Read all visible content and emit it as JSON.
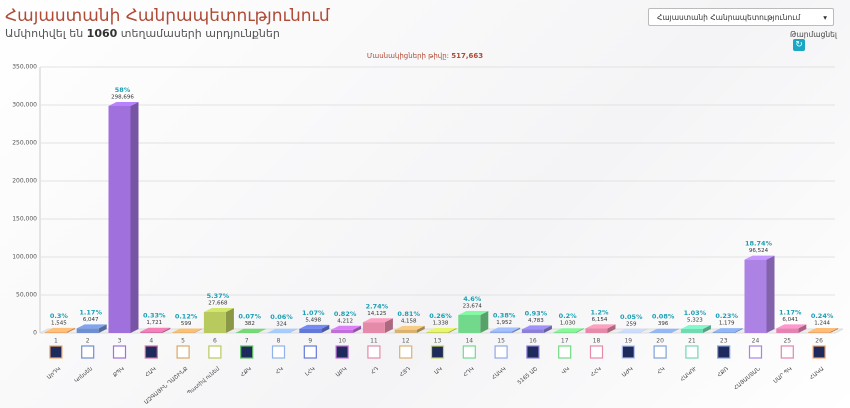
{
  "header": {
    "title": "Հայաստանի Հանրապետությունում",
    "subtitle_pre": "Ամփոփվել են",
    "subtitle_count": "1060",
    "subtitle_post": "տեղամասերի արդյունքներ",
    "dropdown": "Հայաստանի Հանրապետությունում",
    "refresh": "Թարմացնել"
  },
  "chart_data": {
    "type": "bar3d",
    "participants_label": "Մասնակիցների թիվը:",
    "participants": "517,663",
    "numbers": [
      "1",
      "2",
      "3",
      "4",
      "5",
      "6",
      "7",
      "8",
      "9",
      "10",
      "11",
      "12",
      "13",
      "14",
      "15",
      "16",
      "17",
      "18",
      "19",
      "20",
      "21",
      "23",
      "24",
      "25",
      "26"
    ],
    "categories": [
      "ԱրԴԿ",
      "Կոնսեն",
      "ՔՊԿ",
      "ՀԱԿ",
      "ԱԶԳԱՅԻՆ ԴԱՇԻՆՔ",
      "Պատիվ ունեմ",
      "ՀՔԿ",
      "ՀԿ",
      "ԼՀԿ",
      "ԱԲԿ",
      "ՀԴ",
      "ՀՅԴ",
      "ԱԿ",
      "ՀԴԿ",
      "ՀԱԿԿ",
      "5165 ԱՇ",
      "ՎԿ",
      "ՀՀԿ",
      "ԱԺԿ",
      "ՀԿ",
      "ՀԱԿՈՒ",
      "ՀՔՌ",
      "ՀԱՅԱՍՏԱՆ",
      "ՍԱՐ ՊԿ",
      "ՀԱԿԱ"
    ],
    "values": [
      1545,
      6047,
      298696,
      1721,
      599,
      27668,
      382,
      324,
      5498,
      4212,
      14125,
      4158,
      1338,
      23674,
      1952,
      4783,
      1030,
      6154,
      259,
      396,
      5323,
      1179,
      96524,
      6041,
      1244
    ],
    "value_labels": [
      "1,545",
      "6,047",
      "298,696",
      "1,721",
      "599",
      "27,668",
      "382",
      "324",
      "5,498",
      "4,212",
      "14,125",
      "4,158",
      "1,338",
      "23,674",
      "1,952",
      "4,783",
      "1,030",
      "6,154",
      "259",
      "396",
      "5,323",
      "1,179",
      "96,524",
      "6,041",
      "1,244"
    ],
    "percent_labels": [
      "0.3%",
      "1.17%",
      "58%",
      "0.33%",
      "0.12%",
      "5.37%",
      "0.07%",
      "0.06%",
      "1.07%",
      "0.82%",
      "2.74%",
      "0.81%",
      "0.26%",
      "4.6%",
      "0.38%",
      "0.93%",
      "0.2%",
      "1.2%",
      "0.05%",
      "0.08%",
      "1.03%",
      "0.23%",
      "18.74%",
      "1.17%",
      "0.24%"
    ],
    "colors": [
      "#f2a86a",
      "#6f8fd0",
      "#a070dc",
      "#d66fa2",
      "#d9a866",
      "#b8c95e",
      "#62bf62",
      "#8fb3ea",
      "#6478d8",
      "#c06fd8",
      "#e58aa8",
      "#d8b272",
      "#c9d65e",
      "#72d98c",
      "#8fa8ea",
      "#8c7fd8",
      "#72d982",
      "#e58aa8",
      "#b0c0ea",
      "#7fa0d8",
      "#72d9b2",
      "#7f9fd8",
      "#ac82e4",
      "#e582b2",
      "#f0a466"
    ],
    "ylim": [
      0,
      350000
    ],
    "yticks": [
      {
        "value": 0,
        "label": "0"
      },
      {
        "value": 50000,
        "label": "50,000"
      },
      {
        "value": 100000,
        "label": "100,000"
      },
      {
        "value": 150000,
        "label": "150,000"
      },
      {
        "value": 200000,
        "label": "200,000"
      },
      {
        "value": 250000,
        "label": "250,000"
      },
      {
        "value": 300000,
        "label": "300,000"
      },
      {
        "value": 350000,
        "label": "350,000"
      }
    ],
    "grid": true
  }
}
